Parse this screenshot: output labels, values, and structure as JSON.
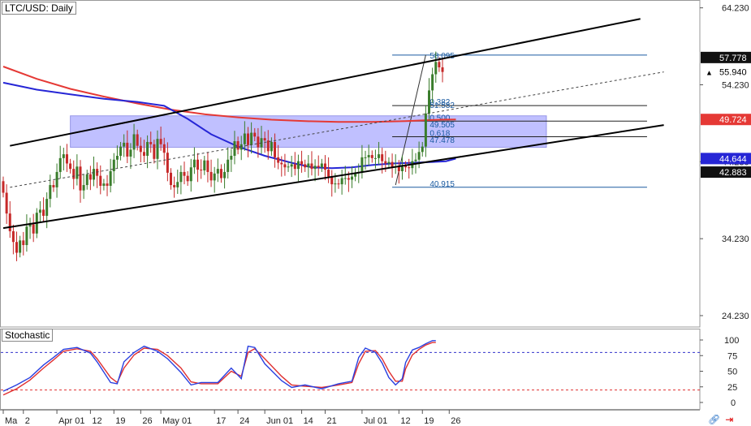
{
  "title": "LTC/USD: Daily",
  "stochastic_title": "Stochastic",
  "colors": {
    "up": "#3a7d2c",
    "down": "#c62828",
    "ma_red": "#e53935",
    "ma_blue": "#2626d6",
    "channel": "#000000",
    "fib": "#1a5aa0",
    "zone": "#8c8cff",
    "stoch_k": "#2a40e0",
    "stoch_d": "#e03030",
    "level_dash": "#3333cc"
  },
  "chart_data": {
    "type": "candlestick",
    "title": "LTC/USD: Daily",
    "x_tick_labels": [
      "Ma",
      "2",
      "Apr 01",
      "12",
      "19",
      "26",
      "May 01",
      "17",
      "24",
      "Jun 01",
      "14",
      "21",
      "Jul 01",
      "12",
      "19",
      "26"
    ],
    "x_tick_index": [
      0,
      6,
      16,
      26,
      33,
      41,
      47,
      63,
      70,
      78,
      89,
      96,
      107,
      118,
      125,
      133
    ],
    "y_ticks": [
      24.23,
      34.23,
      44.23,
      54.23,
      64.23
    ],
    "y_tick_labels": [
      "24.230",
      "34.230",
      "44.230",
      "54.230",
      "64.230"
    ],
    "ylim": [
      22.75,
      65.25
    ],
    "price_tags": [
      {
        "value": 57.778,
        "label": "57.778",
        "style": "dark"
      },
      {
        "value": 55.94,
        "label": "55.940",
        "style": "light"
      },
      {
        "value": 49.724,
        "label": "49.724",
        "style": "red"
      },
      {
        "value": 44.644,
        "label": "44.644",
        "style": "blue"
      },
      {
        "value": 42.883,
        "label": "42.883",
        "style": "dark"
      }
    ],
    "closes": [
      40.2,
      37.5,
      35.2,
      33.8,
      32.4,
      34.0,
      33.4,
      35.8,
      36.1,
      34.9,
      37.6,
      38.0,
      37.2,
      39.4,
      41.2,
      40.9,
      42.9,
      44.7,
      45.2,
      44.0,
      43.3,
      42.0,
      43.6,
      40.5,
      41.2,
      42.6,
      41.9,
      43.3,
      42.4,
      41.1,
      41.4,
      41.1,
      43.0,
      44.5,
      45.0,
      46.2,
      46.7,
      44.9,
      45.8,
      47.8,
      46.3,
      45.5,
      45.0,
      46.8,
      46.5,
      44.6,
      47.2,
      46.5,
      45.4,
      42.8,
      41.2,
      40.9,
      41.6,
      42.9,
      42.4,
      41.7,
      43.5,
      44.5,
      43.2,
      43.1,
      44.4,
      42.9,
      41.8,
      42.7,
      43.3,
      42.1,
      42.9,
      44.5,
      45.0,
      46.9,
      45.8,
      46.5,
      47.9,
      46.4,
      48.0,
      47.5,
      46.1,
      47.3,
      47.0,
      45.6,
      46.8,
      44.8,
      44.1,
      43.9,
      43.5,
      43.6,
      43.9,
      43.3,
      44.3,
      43.9,
      43.5,
      44.0,
      43.3,
      43.7,
      43.5,
      44.0,
      43.2,
      42.3,
      41.3,
      41.4,
      41.3,
      42.1,
      42.1,
      41.9,
      42.3,
      42.8,
      42.9,
      44.8,
      44.8,
      45.1,
      44.7,
      44.7,
      45.2,
      44.3,
      44.0,
      44.2,
      43.5,
      43.6,
      43.0,
      43.7,
      43.5,
      43.4,
      44.3,
      44.5,
      45.5,
      46.2,
      50.5,
      53.5,
      55.6,
      57.2,
      56.5,
      55.9
    ],
    "ma_red": [
      [
        0,
        56.6
      ],
      [
        10,
        55.0
      ],
      [
        20,
        53.7
      ],
      [
        30,
        52.7
      ],
      [
        40,
        51.8
      ],
      [
        50,
        51.0
      ],
      [
        60,
        50.4
      ],
      [
        70,
        50.0
      ],
      [
        80,
        49.7
      ],
      [
        90,
        49.5
      ],
      [
        100,
        49.4
      ],
      [
        110,
        49.4
      ],
      [
        120,
        49.5
      ],
      [
        130,
        49.7
      ],
      [
        135,
        49.72
      ]
    ],
    "ma_blue": [
      [
        0,
        54.5
      ],
      [
        10,
        53.6
      ],
      [
        20,
        53.0
      ],
      [
        30,
        52.4
      ],
      [
        40,
        52.0
      ],
      [
        48,
        51.5
      ],
      [
        55,
        49.8
      ],
      [
        62,
        47.8
      ],
      [
        70,
        46.2
      ],
      [
        78,
        45.0
      ],
      [
        86,
        44.1
      ],
      [
        92,
        43.5
      ],
      [
        98,
        43.4
      ],
      [
        104,
        43.5
      ],
      [
        110,
        43.8
      ],
      [
        116,
        44.0
      ],
      [
        122,
        44.1
      ],
      [
        128,
        44.2
      ],
      [
        132,
        44.3
      ],
      [
        135,
        44.64
      ]
    ],
    "channel_upper": [
      [
        2,
        46.3
      ],
      [
        190,
        62.8
      ]
    ],
    "channel_lower": [
      [
        0,
        35.6
      ],
      [
        197,
        49.0
      ]
    ],
    "channel_mid_dashed": [
      [
        2,
        40.9
      ],
      [
        197,
        55.9
      ]
    ],
    "zone": {
      "x0": 20,
      "x1": 162,
      "y0": 46.1,
      "y1": 50.2
    },
    "fib_lines": [
      {
        "value": 58.095,
        "label": "58.095"
      },
      {
        "value": 51.532,
        "label": "0.382"
      },
      {
        "value": 49.505,
        "label": "0.500"
      },
      {
        "value": 47.478,
        "label": "0.618"
      },
      {
        "value": 40.915,
        "label": "40.915"
      }
    ],
    "fib_extra_labels": [
      {
        "value": 51.1,
        "label": "51.532"
      },
      {
        "value": 48.6,
        "label": "49.505"
      },
      {
        "value": 46.6,
        "label": "47.478"
      }
    ],
    "fib_range_x": [
      116,
      192
    ],
    "fib_diagonal": [
      [
        117,
        41.2
      ],
      [
        126,
        58.1
      ]
    ],
    "stochastic": {
      "y_ticks": [
        0,
        25,
        50,
        75,
        100
      ],
      "y_tick_labels": [
        "0",
        "25",
        "50",
        "75",
        "100"
      ],
      "levels": [
        80,
        20
      ],
      "k": [
        [
          0,
          18
        ],
        [
          4,
          28
        ],
        [
          8,
          40
        ],
        [
          12,
          60
        ],
        [
          15,
          72
        ],
        [
          18,
          85
        ],
        [
          22,
          88
        ],
        [
          26,
          79
        ],
        [
          28,
          65
        ],
        [
          32,
          32
        ],
        [
          34,
          30
        ],
        [
          36,
          65
        ],
        [
          39,
          80
        ],
        [
          42,
          90
        ],
        [
          46,
          82
        ],
        [
          49,
          70
        ],
        [
          53,
          48
        ],
        [
          56,
          28
        ],
        [
          59,
          32
        ],
        [
          64,
          32
        ],
        [
          68,
          55
        ],
        [
          71,
          38
        ],
        [
          73,
          90
        ],
        [
          75,
          88
        ],
        [
          78,
          62
        ],
        [
          83,
          35
        ],
        [
          86,
          24
        ],
        [
          90,
          28
        ],
        [
          95,
          22
        ],
        [
          100,
          30
        ],
        [
          104,
          34
        ],
        [
          106,
          72
        ],
        [
          108,
          87
        ],
        [
          111,
          80
        ],
        [
          113,
          63
        ],
        [
          115,
          40
        ],
        [
          117,
          28
        ],
        [
          119,
          38
        ],
        [
          120,
          64
        ],
        [
          122,
          84
        ],
        [
          124,
          88
        ],
        [
          126,
          94
        ],
        [
          128,
          99
        ],
        [
          129,
          99
        ]
      ],
      "d": [
        [
          0,
          12
        ],
        [
          4,
          22
        ],
        [
          8,
          36
        ],
        [
          12,
          55
        ],
        [
          15,
          68
        ],
        [
          18,
          82
        ],
        [
          22,
          86
        ],
        [
          26,
          82
        ],
        [
          28,
          70
        ],
        [
          32,
          40
        ],
        [
          34,
          32
        ],
        [
          36,
          55
        ],
        [
          39,
          76
        ],
        [
          42,
          87
        ],
        [
          46,
          85
        ],
        [
          49,
          75
        ],
        [
          53,
          55
        ],
        [
          56,
          33
        ],
        [
          59,
          30
        ],
        [
          64,
          30
        ],
        [
          68,
          50
        ],
        [
          71,
          42
        ],
        [
          73,
          80
        ],
        [
          75,
          86
        ],
        [
          78,
          70
        ],
        [
          83,
          42
        ],
        [
          86,
          28
        ],
        [
          90,
          26
        ],
        [
          95,
          24
        ],
        [
          100,
          28
        ],
        [
          104,
          32
        ],
        [
          106,
          62
        ],
        [
          108,
          82
        ],
        [
          111,
          83
        ],
        [
          113,
          70
        ],
        [
          115,
          50
        ],
        [
          117,
          34
        ],
        [
          119,
          34
        ],
        [
          120,
          54
        ],
        [
          122,
          76
        ],
        [
          124,
          85
        ],
        [
          126,
          92
        ],
        [
          128,
          96
        ],
        [
          129,
          96
        ]
      ]
    }
  }
}
